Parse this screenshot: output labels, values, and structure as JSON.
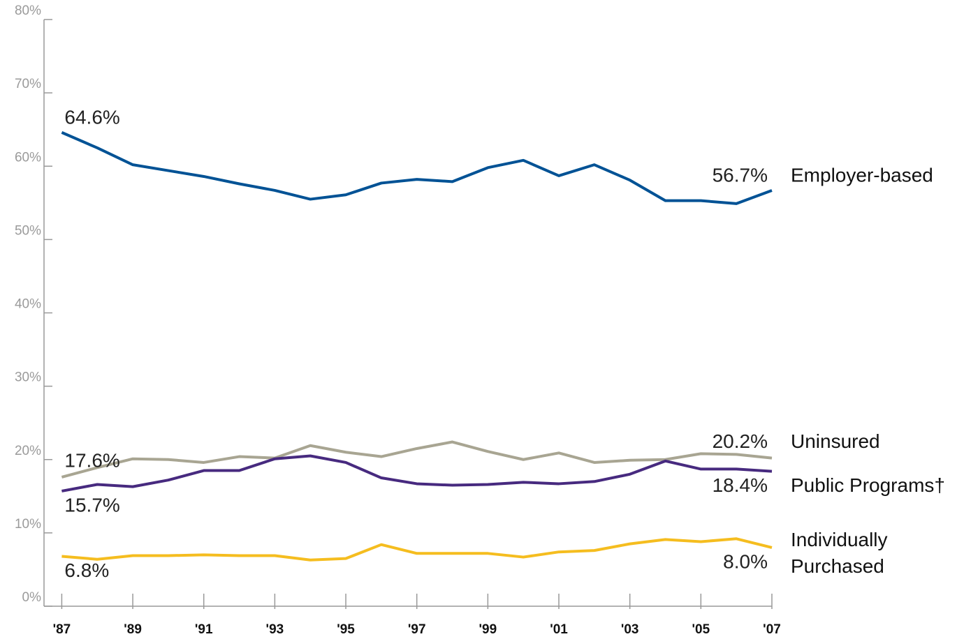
{
  "chart_data": {
    "type": "line",
    "x": [
      1987,
      1988,
      1989,
      1990,
      1991,
      1992,
      1993,
      1994,
      1995,
      1996,
      1997,
      1998,
      1999,
      2000,
      2001,
      2002,
      2003,
      2004,
      2005,
      2006,
      2007
    ],
    "xlim": [
      1986.5,
      2007
    ],
    "xticks": [
      {
        "value": 1987,
        "label": "'87"
      },
      {
        "value": 1989,
        "label": "'89"
      },
      {
        "value": 1991,
        "label": "'91"
      },
      {
        "value": 1993,
        "label": "'93"
      },
      {
        "value": 1995,
        "label": "'95"
      },
      {
        "value": 1997,
        "label": "'97"
      },
      {
        "value": 1999,
        "label": "'99"
      },
      {
        "value": 2001,
        "label": "'01"
      },
      {
        "value": 2003,
        "label": "'03"
      },
      {
        "value": 2005,
        "label": "'05"
      },
      {
        "value": 2007,
        "label": "'07"
      }
    ],
    "ylim": [
      0,
      80
    ],
    "yticks": [
      {
        "value": 0,
        "label": "0%"
      },
      {
        "value": 10,
        "label": "10%"
      },
      {
        "value": 20,
        "label": "20%"
      },
      {
        "value": 30,
        "label": "30%"
      },
      {
        "value": 40,
        "label": "40%"
      },
      {
        "value": 50,
        "label": "50%"
      },
      {
        "value": 60,
        "label": "60%"
      },
      {
        "value": 70,
        "label": "70%"
      },
      {
        "value": 80,
        "label": "80%"
      }
    ],
    "series": [
      {
        "name": "Employer-based",
        "color": "#005295",
        "values": [
          64.6,
          62.5,
          60.2,
          59.4,
          58.6,
          57.6,
          56.7,
          55.5,
          56.1,
          57.7,
          58.2,
          57.9,
          59.8,
          60.8,
          58.7,
          60.2,
          58.1,
          55.3,
          55.3,
          54.9,
          56.7
        ],
        "value_labels": [
          "64.6%",
          null,
          null,
          null,
          null,
          null,
          null,
          null,
          null,
          null,
          null,
          null,
          null,
          null,
          null,
          null,
          null,
          null,
          null,
          null,
          "56.7%"
        ]
      },
      {
        "name": "Uninsured",
        "color": "#a8a592",
        "values": [
          17.6,
          18.9,
          20.1,
          20.0,
          19.6,
          20.4,
          20.2,
          21.9,
          21.0,
          20.4,
          21.5,
          22.4,
          21.1,
          20.0,
          20.9,
          19.6,
          19.9,
          20.0,
          20.8,
          20.7,
          20.2
        ],
        "value_labels": [
          "17.6%",
          null,
          null,
          null,
          null,
          null,
          null,
          null,
          null,
          null,
          null,
          null,
          null,
          null,
          null,
          null,
          null,
          null,
          null,
          null,
          "20.2%"
        ]
      },
      {
        "name": "Public Programs†",
        "color": "#472a7f",
        "values": [
          15.7,
          16.6,
          16.3,
          17.2,
          18.5,
          18.5,
          20.1,
          20.5,
          19.6,
          17.5,
          16.7,
          16.5,
          16.6,
          16.9,
          16.7,
          17.0,
          18.0,
          19.8,
          18.7,
          18.7,
          18.4
        ],
        "value_labels": [
          "15.7%",
          null,
          null,
          null,
          null,
          null,
          null,
          null,
          null,
          null,
          null,
          null,
          null,
          null,
          null,
          null,
          null,
          null,
          null,
          null,
          "18.4%"
        ]
      },
      {
        "name": "Individually Purchased",
        "color": "#f5bd1f",
        "values": [
          6.8,
          6.4,
          6.9,
          6.9,
          7.0,
          6.9,
          6.9,
          6.3,
          6.5,
          8.4,
          7.2,
          7.2,
          7.2,
          6.7,
          7.4,
          7.6,
          8.5,
          9.1,
          8.8,
          9.2,
          8.0
        ],
        "value_labels": [
          "6.8%",
          null,
          null,
          null,
          null,
          null,
          null,
          null,
          null,
          null,
          null,
          null,
          null,
          null,
          null,
          null,
          null,
          null,
          null,
          null,
          "8.0%"
        ]
      }
    ]
  }
}
